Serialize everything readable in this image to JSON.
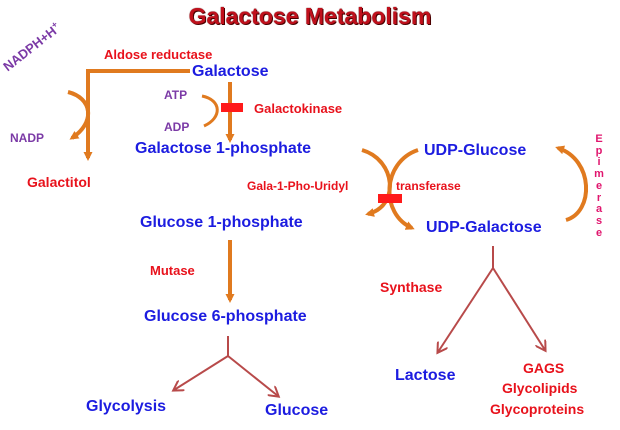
{
  "title": "Galactose Metabolism",
  "labels": {
    "nadph": "NADPH+H",
    "nadph_sup": "+",
    "aldose_reductase": "Aldose reductase",
    "galactose": "Galactose",
    "atp": "ATP",
    "galactokinase": "Galactokinase",
    "adp": "ADP",
    "nadp": "NADP",
    "galactose_1p": "Galactose 1-phosphate",
    "galactitol": "Galactitol",
    "udp_glucose": "UDP-Glucose",
    "gala_1_pho_uridyl": "Gala-1-Pho-Uridyl",
    "transferase": "transferase",
    "glucose_1p": "Glucose 1-phosphate",
    "udp_galactose": "UDP-Galactose",
    "epimerase": "Epimerase",
    "mutase": "Mutase",
    "synthase": "Synthase",
    "glucose_6p": "Glucose 6-phosphate",
    "lactose": "Lactose",
    "gags": "GAGS",
    "glycolipids": "Glycolipids",
    "glycoproteins": "Glycoproteins",
    "glycolysis": "Glycolysis",
    "glucose": "Glucose"
  },
  "colors": {
    "metabolite": "#1c1ce0",
    "enzyme": "#e8121c",
    "cofactor": "#7b3aa6",
    "epimerase": "#e0166e",
    "pathway_arrow": "#e07a1f",
    "branch_arrow": "#b84a4a",
    "block": "#ff1a1a"
  }
}
